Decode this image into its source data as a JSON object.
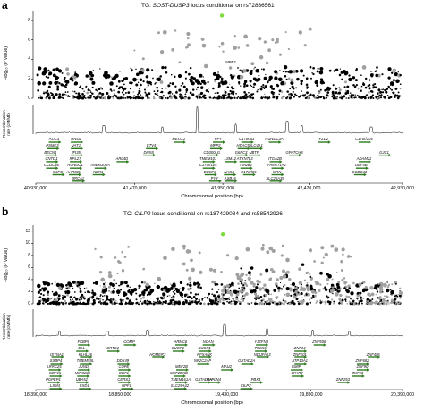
{
  "chart_data": [
    {
      "panel_label": "a",
      "type": "scatter",
      "title": {
        "prefix": "TG: ",
        "gene": "SOST-DUSP3",
        "suffix": " locus conditional on rs72836561"
      },
      "ylabel": "−log₁₀ (P value)",
      "yticks": [
        "0",
        "2",
        "4",
        "6",
        "8"
      ],
      "ylim": [
        0,
        9
      ],
      "xlim": [
        40930000,
        42930000
      ],
      "xticks": [
        40930000,
        41470000,
        41950000,
        42420000,
        42930000
      ],
      "xtick_labels": [
        "40,930,000",
        "41,470,000",
        "41,950,000",
        "42,420,000",
        "42,930,000"
      ],
      "xlabel": "Chromosomal position (bp)",
      "rec_label": [
        "Recombination",
        "rate (cM/Mb)"
      ],
      "lead_snp": {
        "x": 41945000,
        "y": 8.5,
        "color": "#7ddc3c"
      },
      "labeled_snp": {
        "label": "MPP3",
        "x": 41950000,
        "y": 3.4
      },
      "recomb_peaks": [
        [
          41300000,
          0.3
        ],
        [
          41620000,
          0.25
        ],
        [
          41810000,
          0.95
        ],
        [
          42020000,
          0.35
        ],
        [
          42300000,
          0.45
        ],
        [
          42380000,
          0.3
        ],
        [
          42760000,
          0.25
        ]
      ],
      "genes": [
        {
          "label": "AOC3",
          "x": 41030000,
          "row": 0
        },
        {
          "label": "PSME3",
          "x": 41020000,
          "row": 1
        },
        {
          "label": "BECN1",
          "x": 41010000,
          "row": 2
        },
        {
          "label": "CNTD1",
          "x": 41015000,
          "row": 3
        },
        {
          "label": "CCDC56",
          "x": 41015000,
          "row": 4
        },
        {
          "label": "G6PC",
          "x": 41050000,
          "row": 5
        },
        {
          "label": "RND2",
          "x": 41150000,
          "row": 0
        },
        {
          "label": "VAT1",
          "x": 41150000,
          "row": 1
        },
        {
          "label": "IFI35",
          "x": 41150000,
          "row": 2
        },
        {
          "label": "RPL27",
          "x": 41145000,
          "row": 3
        },
        {
          "label": "RUNDC1",
          "x": 41145000,
          "row": 4
        },
        {
          "label": "AARSD1",
          "x": 41140000,
          "row": 5
        },
        {
          "label": "BRCA1",
          "x": 41160000,
          "row": 6
        },
        {
          "label": "TMEM106A",
          "x": 41280000,
          "row": 4
        },
        {
          "label": "NBR1",
          "x": 41270000,
          "row": 5
        },
        {
          "label": "ARL4D",
          "x": 41400000,
          "row": 3
        },
        {
          "label": "ETV4",
          "x": 41560000,
          "row": 1
        },
        {
          "label": "DHX8",
          "x": 41545000,
          "row": 2
        },
        {
          "label": "MEOX1",
          "x": 41710000,
          "row": 0
        },
        {
          "label": "PPY",
          "x": 41925000,
          "row": 0
        },
        {
          "label": "MPP2",
          "x": 41910000,
          "row": 1
        },
        {
          "label": "CD300LG",
          "x": 41890000,
          "row": 2
        },
        {
          "label": "TMEM101",
          "x": 41870000,
          "row": 3
        },
        {
          "label": "C17orf105",
          "x": 41870000,
          "row": 4
        },
        {
          "label": "DUSP3",
          "x": 41880000,
          "row": 5
        },
        {
          "label": "PYY",
          "x": 41905000,
          "row": 6
        },
        {
          "label": "LSM12",
          "x": 41990000,
          "row": 3
        },
        {
          "label": "NAGS",
          "x": 41985000,
          "row": 5
        },
        {
          "label": "ASB16",
          "x": 41990000,
          "row": 6
        },
        {
          "label": "C17orf53",
          "x": 42080000,
          "row": 0
        },
        {
          "label": "HDAC5",
          "x": 42060000,
          "row": 1
        },
        {
          "label": "G6PC3",
          "x": 42050000,
          "row": 2
        },
        {
          "label": "ATXN7L3",
          "x": 42070000,
          "row": 3
        },
        {
          "label": "TMUB2",
          "x": 42075000,
          "row": 4
        },
        {
          "label": "C17orf65",
          "x": 42090000,
          "row": 5
        },
        {
          "label": "SLC4A1",
          "x": 42130000,
          "row": 1
        },
        {
          "label": "UBTF",
          "x": 42120000,
          "row": 2
        },
        {
          "label": "RUNDC3A",
          "x": 42230000,
          "row": 0
        },
        {
          "label": "ITGA2B",
          "x": 42235000,
          "row": 3
        },
        {
          "label": "FAM171A2",
          "x": 42245000,
          "row": 4
        },
        {
          "label": "GRN",
          "x": 42245000,
          "row": 5
        },
        {
          "label": "SLC25A39",
          "x": 42235000,
          "row": 6
        },
        {
          "label": "GPATCH8",
          "x": 42340000,
          "row": 2
        },
        {
          "label": "FZD2",
          "x": 42500000,
          "row": 0
        },
        {
          "label": "C17orf104",
          "x": 42720000,
          "row": 0
        },
        {
          "label": "GJC1",
          "x": 42830000,
          "row": 2
        },
        {
          "label": "ADAM11",
          "x": 42720000,
          "row": 3
        },
        {
          "label": "DBF4B",
          "x": 42705000,
          "row": 4
        },
        {
          "label": "CCDC43",
          "x": 42695000,
          "row": 5
        }
      ]
    },
    {
      "panel_label": "b",
      "type": "scatter",
      "title": {
        "prefix": "TC: ",
        "gene": "CILP2",
        "suffix": " locus conditional on rs187429084 and rs58542926"
      },
      "ylabel": "−log₁₀ (P value)",
      "yticks": [
        "0",
        "2",
        "4",
        "6",
        "8",
        "10",
        "12"
      ],
      "ylim": [
        0,
        13
      ],
      "xlim": [
        18390000,
        20390000
      ],
      "xticks": [
        18390000,
        18850000,
        19430000,
        19890000,
        20390000
      ],
      "xtick_labels": [
        "18,390,000",
        "18,850,000",
        "19,430,000",
        "19,890,000",
        "20,390,000"
      ],
      "xlabel": "Chromosomal position (bp)",
      "rec_label": [
        "Recombination",
        "rate (cM/Mb)"
      ],
      "lead_snp": {
        "x": 19410000,
        "y": 11.5,
        "color": "#7ddc3c"
      },
      "recomb_peaks": [
        [
          18520000,
          0.2
        ],
        [
          18780000,
          0.2
        ],
        [
          19000000,
          0.25
        ],
        [
          19420000,
          0.45
        ],
        [
          19650000,
          0.3
        ],
        [
          19900000,
          0.25
        ],
        [
          20100000,
          0.2
        ]
      ],
      "genes": [
        {
          "label": "FKBP8",
          "x": 18650000,
          "row": 0
        },
        {
          "label": "ELL",
          "x": 18640000,
          "row": 1
        },
        {
          "label": "ISYNA1",
          "x": 18505000,
          "row": 2
        },
        {
          "label": "SSBP4",
          "x": 18500000,
          "row": 3
        },
        {
          "label": "LRRC25",
          "x": 18490000,
          "row": 4
        },
        {
          "label": "GDF15",
          "x": 18495000,
          "row": 5
        },
        {
          "label": "PGPEP1",
          "x": 18485000,
          "row": 6
        },
        {
          "label": "LSM4",
          "x": 18495000,
          "row": 7
        },
        {
          "label": "KLHL26",
          "x": 18660000,
          "row": 2
        },
        {
          "label": "TMEM59L",
          "x": 18660000,
          "row": 3
        },
        {
          "label": "JUND",
          "x": 18650000,
          "row": 4
        },
        {
          "label": "MIR3188",
          "x": 18645000,
          "row": 5
        },
        {
          "label": "UBA52",
          "x": 18640000,
          "row": 6
        },
        {
          "label": "KXD1",
          "x": 18655000,
          "row": 7
        },
        {
          "label": "COMP",
          "x": 18900000,
          "row": 0
        },
        {
          "label": "CRTC1",
          "x": 18810000,
          "row": 1
        },
        {
          "label": "DDX49",
          "x": 18865000,
          "row": 3
        },
        {
          "label": "COPE",
          "x": 18870000,
          "row": 4
        },
        {
          "label": "GDF1",
          "x": 18870000,
          "row": 5
        },
        {
          "label": "CERS1",
          "x": 18870000,
          "row": 6
        },
        {
          "label": "UPF1",
          "x": 18885000,
          "row": 7
        },
        {
          "label": "ARMC6",
          "x": 19180000,
          "row": 0
        },
        {
          "label": "SUGP2",
          "x": 19165000,
          "row": 1
        },
        {
          "label": "HOMER3",
          "x": 19055000,
          "row": 2
        },
        {
          "label": "MEF2B",
          "x": 19185000,
          "row": 4
        },
        {
          "label": "MEF2BNB",
          "x": 19170000,
          "row": 5
        },
        {
          "label": "TMEM161A",
          "x": 19180000,
          "row": 6
        },
        {
          "label": "SLC25A42",
          "x": 19175000,
          "row": 7
        },
        {
          "label": "NCAN",
          "x": 19330000,
          "row": 0
        },
        {
          "label": "SUGP1",
          "x": 19310000,
          "row": 1
        },
        {
          "label": "RFXANK",
          "x": 19310000,
          "row": 2
        },
        {
          "label": "NR2C2AP",
          "x": 19300000,
          "row": 3
        },
        {
          "label": "GATAD2A",
          "x": 19305000,
          "row": 6
        },
        {
          "label": "MAU2",
          "x": 19430000,
          "row": 4
        },
        {
          "label": "HAPLN4",
          "x": 19360000,
          "row": 6
        },
        {
          "label": "YJEFN3",
          "x": 19620000,
          "row": 0
        },
        {
          "label": "TSSK6",
          "x": 19615000,
          "row": 1
        },
        {
          "label": "NDUFA13",
          "x": 19625000,
          "row": 2
        },
        {
          "label": "GATAD2A",
          "x": 19540000,
          "row": 3
        },
        {
          "label": "PBX4",
          "x": 19590000,
          "row": 6
        },
        {
          "label": "CILP2",
          "x": 19535000,
          "row": 7
        },
        {
          "label": "ZNF506",
          "x": 19935000,
          "row": 0
        },
        {
          "label": "ZNF14",
          "x": 19830000,
          "row": 1
        },
        {
          "label": "ZNF101",
          "x": 19830000,
          "row": 2
        },
        {
          "label": "ATP13A1",
          "x": 19830000,
          "row": 3
        },
        {
          "label": "GMIP",
          "x": 19810000,
          "row": 4
        },
        {
          "label": "LPAR2",
          "x": 19815000,
          "row": 5
        },
        {
          "label": "ZNF486",
          "x": 20230000,
          "row": 2
        },
        {
          "label": "ZNF682",
          "x": 20170000,
          "row": 3
        },
        {
          "label": "ZNF90",
          "x": 20170000,
          "row": 4
        },
        {
          "label": "ZNF93",
          "x": 20145000,
          "row": 5
        },
        {
          "label": "ZNF253",
          "x": 20065000,
          "row": 6
        }
      ]
    }
  ],
  "colors": {
    "gene_arrow": "#2d7a1f",
    "lead": "#7ddc3c",
    "grey_points": "#a0a0a0",
    "black_points": "#000000"
  }
}
